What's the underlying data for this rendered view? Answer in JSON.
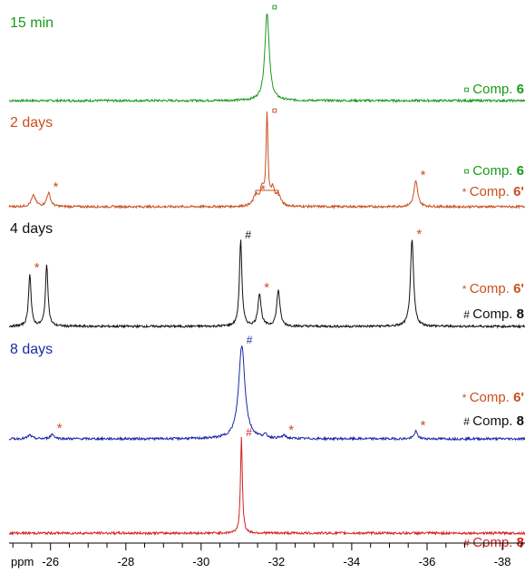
{
  "chart_data": {
    "type": "line",
    "title": "",
    "xlabel": "ppm",
    "xlim": [
      -24.9,
      -38.6
    ],
    "x_ticks": [
      "-26",
      "-28",
      "-30",
      "-32",
      "-34",
      "-36",
      "-38"
    ],
    "x_tick_values": [
      -26,
      -28,
      -30,
      -32,
      -34,
      -36,
      -38
    ],
    "grid": false,
    "series": [
      {
        "name": "15 min",
        "color": "#1a9a1a",
        "peaks": [
          {
            "ppm": -31.75,
            "height": 1.0,
            "width": 0.07,
            "marker": "¤"
          }
        ],
        "legend": [
          {
            "symbol": "¤",
            "text": "Comp.",
            "number": "6",
            "symbol_color": "#1a9a1a",
            "number_color": "#1a9a1a"
          }
        ]
      },
      {
        "name": "2 days",
        "color": "#c8501e",
        "peaks": [
          {
            "ppm": -25.55,
            "height": 0.12,
            "width": 0.07,
            "marker": ""
          },
          {
            "ppm": -25.95,
            "height": 0.15,
            "width": 0.06,
            "marker": "*"
          },
          {
            "ppm": -31.45,
            "height": 0.12,
            "width": 0.07,
            "marker": "*"
          },
          {
            "ppm": -31.62,
            "height": 0.18,
            "width": 0.06,
            "marker": ""
          },
          {
            "ppm": -31.75,
            "height": 1.0,
            "width": 0.03,
            "marker": "¤"
          },
          {
            "ppm": -31.9,
            "height": 0.18,
            "width": 0.06,
            "marker": ""
          },
          {
            "ppm": -32.05,
            "height": 0.12,
            "width": 0.07,
            "marker": ""
          },
          {
            "ppm": -35.7,
            "height": 0.28,
            "width": 0.06,
            "marker": "*"
          }
        ],
        "legend": [
          {
            "symbol": "¤",
            "text": "Comp.",
            "number": "6",
            "symbol_color": "#1a9a1a",
            "number_color": "#1a9a1a"
          },
          {
            "symbol": "*",
            "text": "Comp.",
            "number": "6'",
            "symbol_color": "#c8501e",
            "number_color": "#c8501e"
          }
        ]
      },
      {
        "name": "4 days",
        "color": "#111111",
        "peaks": [
          {
            "ppm": -25.45,
            "height": 0.58,
            "width": 0.04,
            "marker": "*"
          },
          {
            "ppm": -25.9,
            "height": 0.68,
            "width": 0.04,
            "marker": ""
          },
          {
            "ppm": -31.05,
            "height": 0.95,
            "width": 0.04,
            "marker": "#"
          },
          {
            "ppm": -31.55,
            "height": 0.36,
            "width": 0.05,
            "marker": "*"
          },
          {
            "ppm": -32.05,
            "height": 0.4,
            "width": 0.05,
            "marker": ""
          },
          {
            "ppm": -35.6,
            "height": 0.95,
            "width": 0.05,
            "marker": "*"
          }
        ],
        "legend": [
          {
            "symbol": "*",
            "text": "Comp.",
            "number": "6'",
            "symbol_color": "#c8501e",
            "number_color": "#c8501e"
          },
          {
            "symbol": "#",
            "text": "Comp.",
            "number": "8",
            "symbol_color": "#111111",
            "number_color": "#111111"
          }
        ]
      },
      {
        "name": "8 days",
        "color": "#1a2aa8",
        "peaks": [
          {
            "ppm": -25.45,
            "height": 0.04,
            "width": 0.06,
            "marker": ""
          },
          {
            "ppm": -26.05,
            "height": 0.05,
            "width": 0.06,
            "marker": "*"
          },
          {
            "ppm": -31.08,
            "height": 1.0,
            "width": 0.1,
            "marker": "#"
          },
          {
            "ppm": -31.7,
            "height": 0.03,
            "width": 0.06,
            "marker": ""
          },
          {
            "ppm": -32.2,
            "height": 0.03,
            "width": 0.06,
            "marker": "*"
          },
          {
            "ppm": -35.7,
            "height": 0.08,
            "width": 0.05,
            "marker": "*"
          }
        ],
        "legend": [
          {
            "symbol": "*",
            "text": "Comp.",
            "number": "6'",
            "symbol_color": "#c8501e",
            "number_color": "#c8501e"
          },
          {
            "symbol": "#",
            "text": "Comp.",
            "number": "8",
            "symbol_color": "#111111",
            "number_color": "#111111"
          }
        ]
      },
      {
        "name": "",
        "color": "#d62020",
        "peaks": [
          {
            "ppm": -31.07,
            "height": 1.0,
            "width": 0.03,
            "marker": "#"
          }
        ],
        "legend": [
          {
            "symbol": "#",
            "text": "Comp.",
            "number": "8",
            "symbol_color": "#d62020",
            "number_color": "#d62020"
          }
        ]
      }
    ]
  }
}
